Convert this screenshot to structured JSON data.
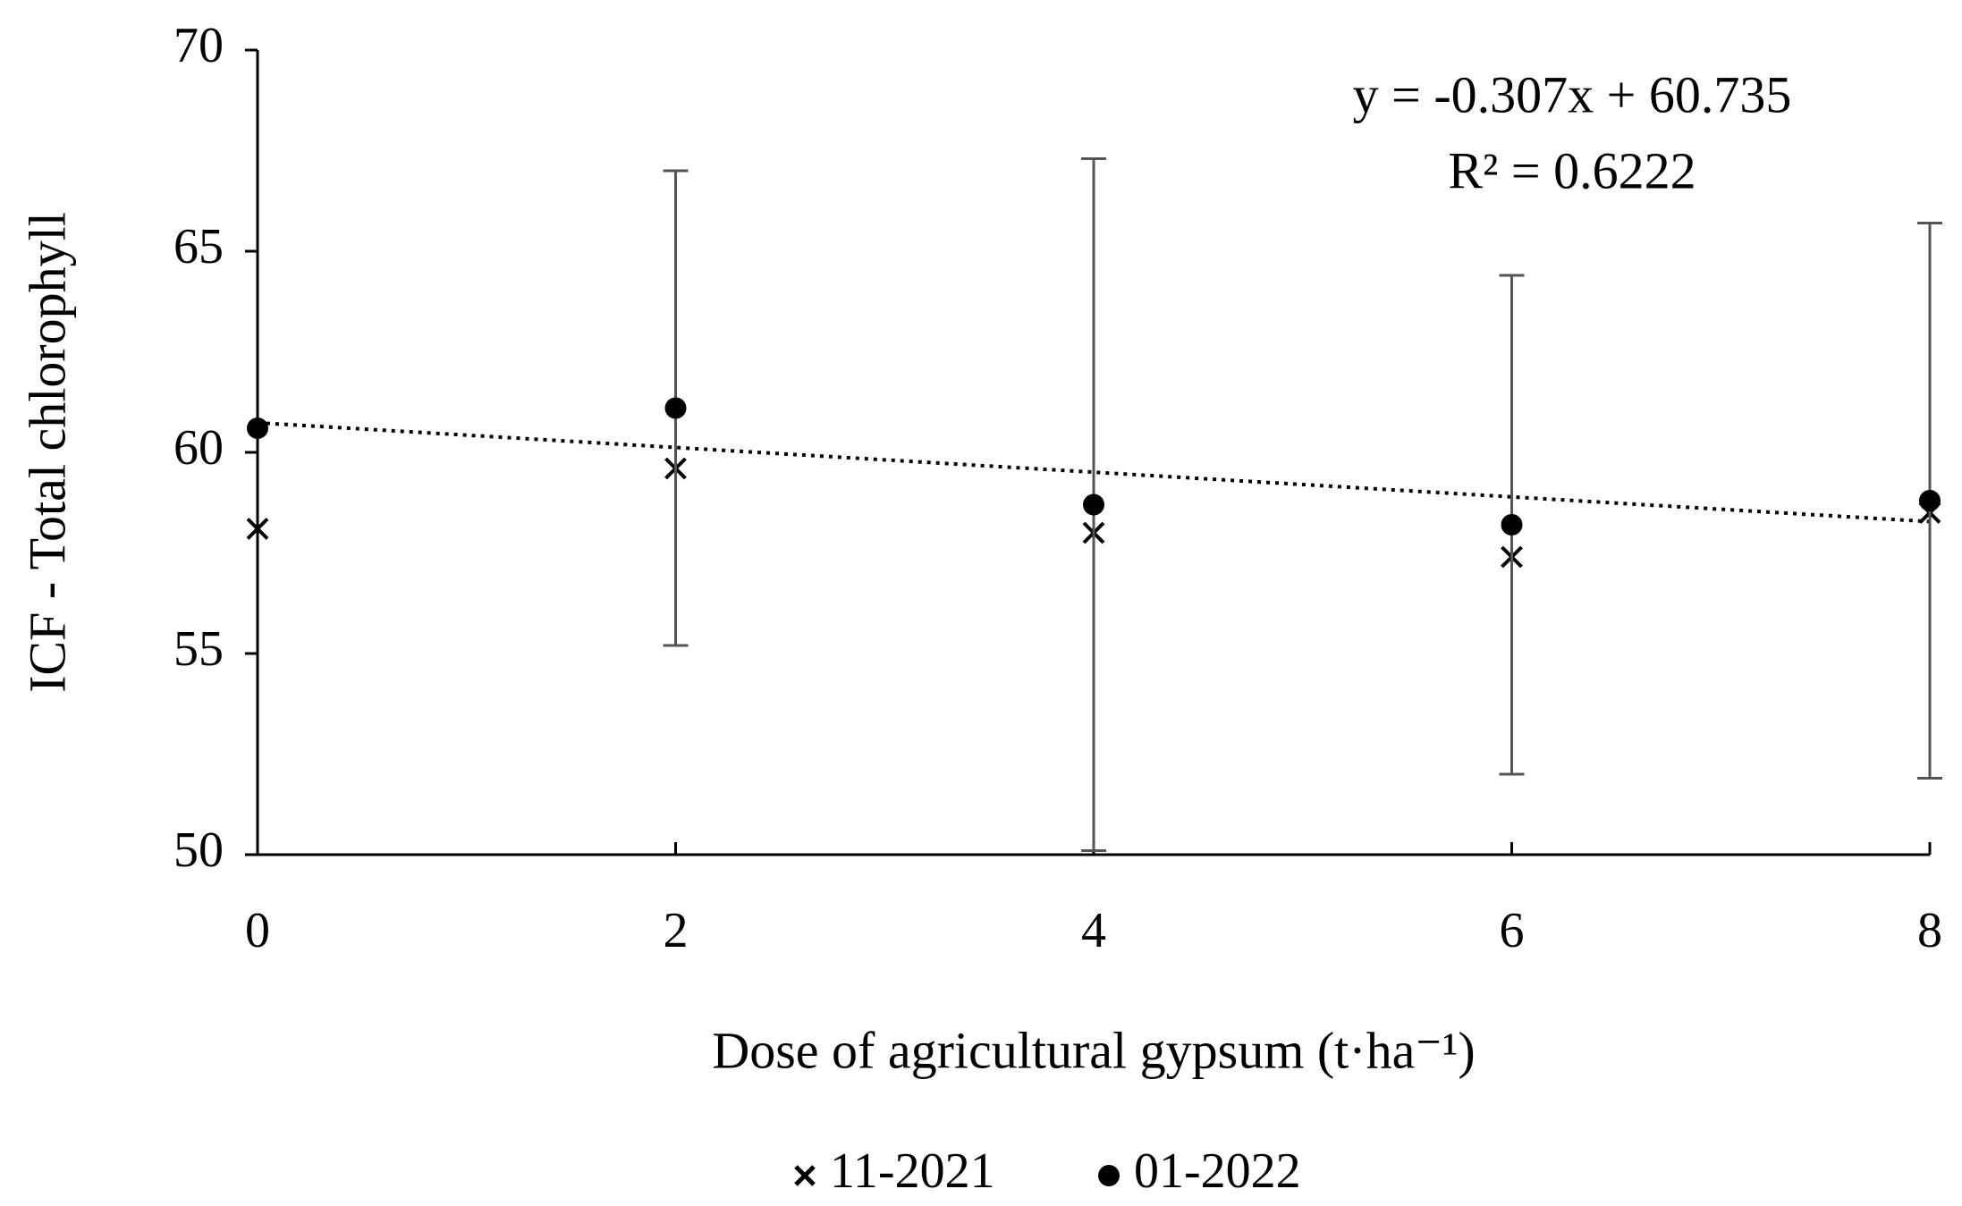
{
  "chart_data": {
    "type": "scatter",
    "x_label": "Dose of agricultural  gypsum (t·ha⁻¹)",
    "y_label": "ICF - Total chlorophyll",
    "x": [
      0,
      2,
      4,
      6,
      8
    ],
    "series": [
      {
        "name": "11-2021",
        "color": "#000000",
        "marker": "x",
        "values": [
          58.1,
          59.6,
          58.0,
          57.4,
          58.5
        ]
      },
      {
        "name": "01-2022",
        "color": "#000000",
        "marker": "o",
        "values": [
          60.6,
          61.1,
          58.7,
          58.2,
          58.8
        ],
        "errors": [
          null,
          5.9,
          8.6,
          6.2,
          6.9
        ]
      }
    ],
    "trendline": {
      "slope": -0.307,
      "intercept": 60.735,
      "equation": "y = -0.307x + 60.735",
      "r2_label": "R² = 0.6222"
    },
    "xlim": [
      0,
      8
    ],
    "xticks": [
      0,
      2,
      4,
      6,
      8
    ],
    "ylim": [
      50,
      70
    ],
    "yticks": [
      50,
      55,
      60,
      65,
      70
    ],
    "legend": "bottom"
  }
}
